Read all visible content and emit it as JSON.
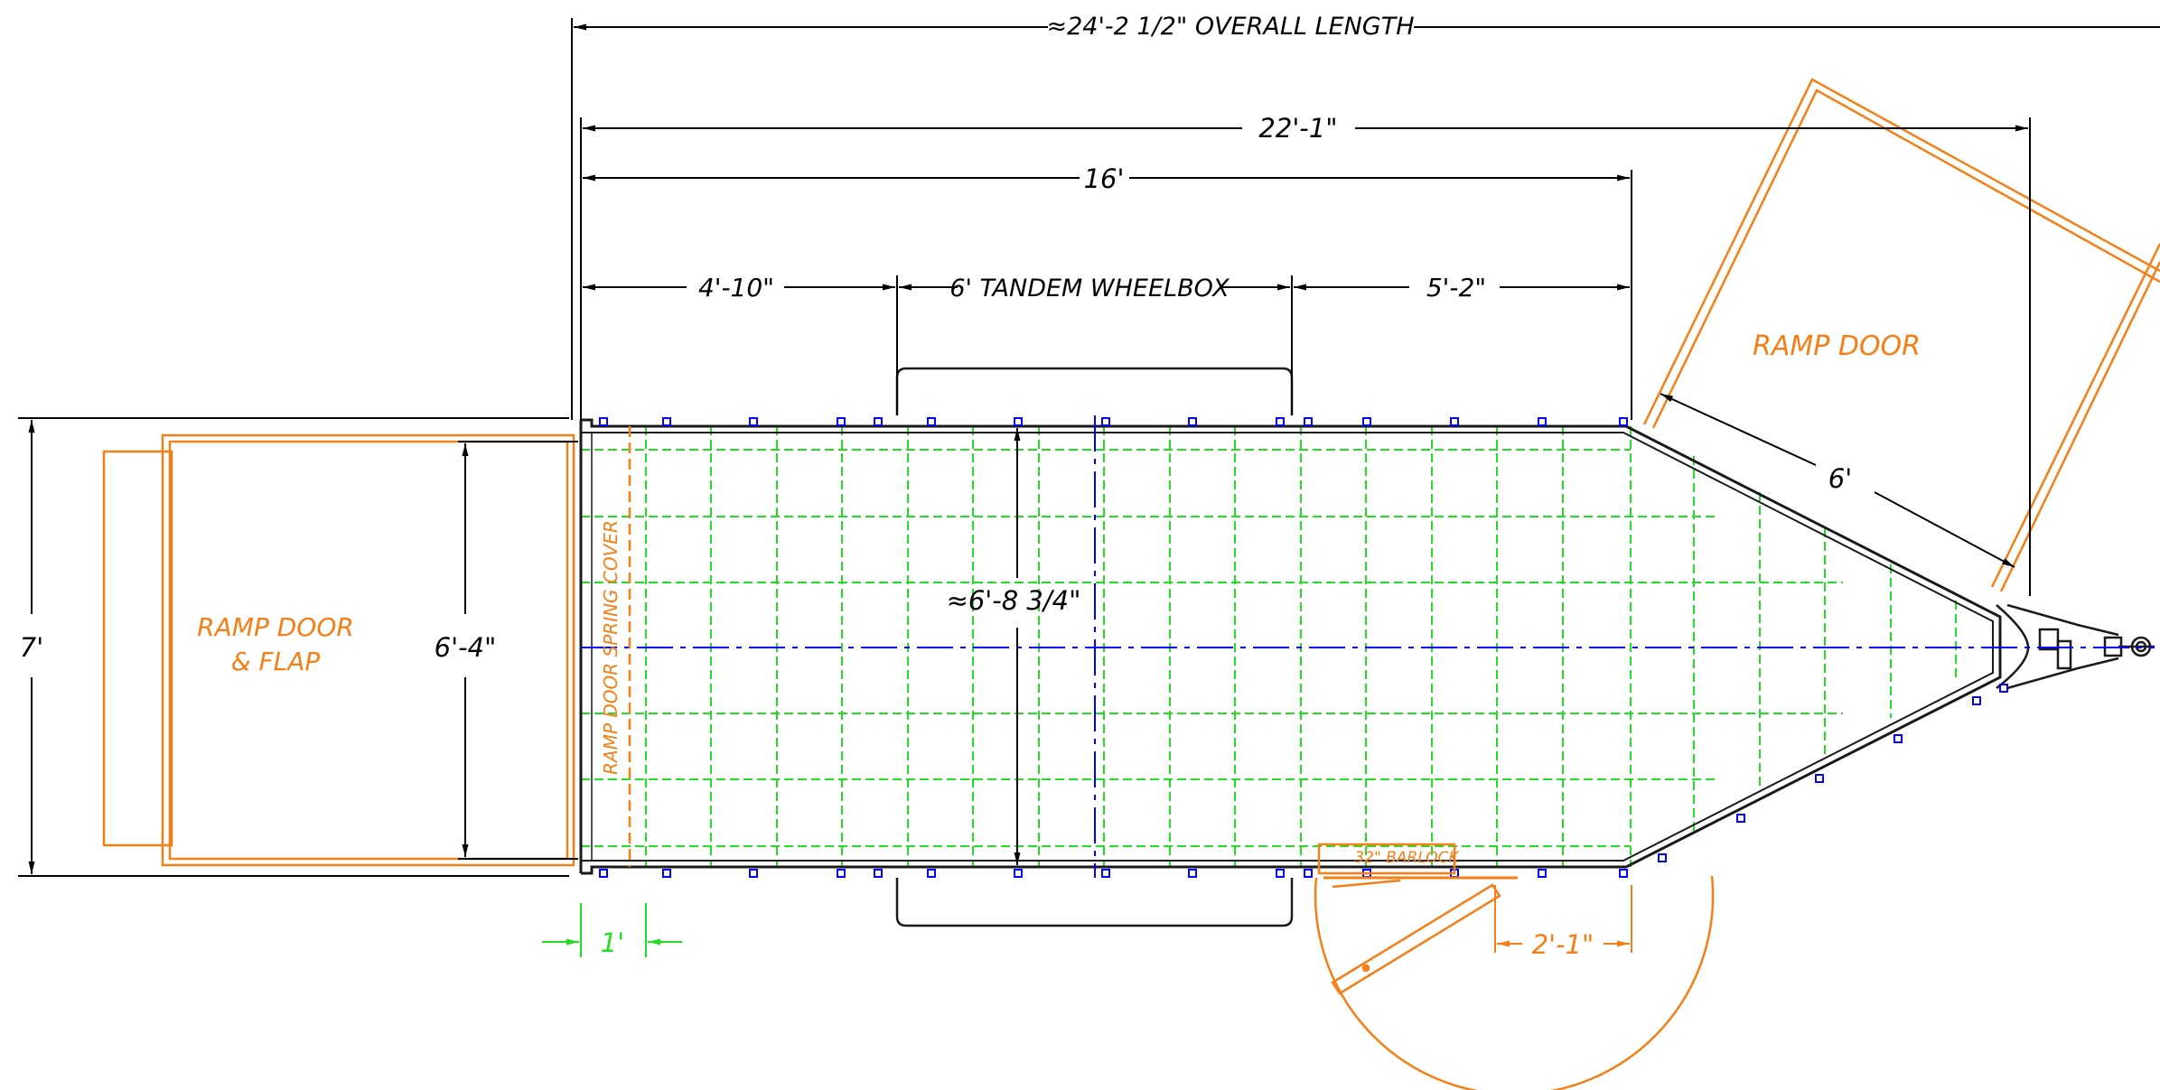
{
  "dimensions": {
    "overall_length": "≈24'-2 1/2\" OVERALL LENGTH",
    "length_22": "22'-1\"",
    "length_16": "16'",
    "front_4_10": "4'-10\"",
    "wheelbox": "6' TANDEM WHEELBOX",
    "rear_5_2": "5'-2\"",
    "width_7": "7'",
    "rear_opening": "6'-4\"",
    "interior_width": "≈6'-8 3/4\"",
    "ramp_side_6": "6'",
    "spring_cover_1": "1'",
    "side_door_2_1": "2'-1\""
  },
  "labels": {
    "ramp_door_flap_line1": "RAMP DOOR",
    "ramp_door_flap_line2": "& FLAP",
    "ramp_door": "RAMP DOOR",
    "spring_cover": "RAMP DOOR SPRING COVER",
    "barlock": "32\" BARLOCK"
  },
  "colors": {
    "outline": "#1a1a1a",
    "dimension": "#000000",
    "orange": "#f57f17",
    "green_grid": "#22dd22",
    "blue_center": "#0000ff"
  }
}
